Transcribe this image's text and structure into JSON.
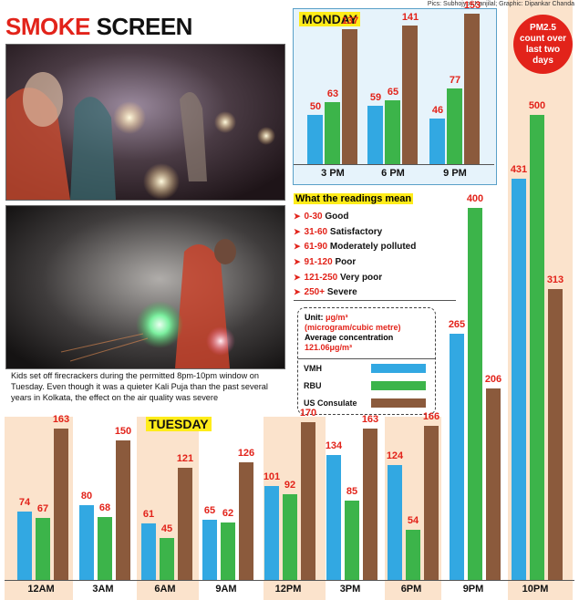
{
  "credits": "Pics: Subhojyoti Kanjilal; Graphic: Dipankar Chanda",
  "headline": {
    "part1": "SMOKE",
    "part2": "SCREEN"
  },
  "badge": {
    "line1": "PM2.5",
    "line2": "count over",
    "line3": "last two",
    "line4": "days"
  },
  "caption": "Kids set off firecrackers during the permitted 8pm-10pm window on Tuesday. Even though it was a quieter Kali Puja than the past several years in Kolkata, the effect on the air quality was severe",
  "colors": {
    "VMH": "#32a8e2",
    "RBU": "#3cb44a",
    "US Consulate": "#8b5a3c",
    "band": "#fbe3cc",
    "tag": "#ffec1a",
    "accent": "#e2231a"
  },
  "readings": {
    "title": "What the readings mean",
    "items": [
      {
        "range": "0-30",
        "label": "Good"
      },
      {
        "range": "31-60",
        "label": "Satisfactory"
      },
      {
        "range": "61-90",
        "label": "Moderately polluted"
      },
      {
        "range": "91-120",
        "label": "Poor"
      },
      {
        "range": "121-250",
        "label": "Very poor"
      },
      {
        "range": "250+",
        "label": "Severe"
      }
    ]
  },
  "legend": {
    "unit_label": "Unit:",
    "unit": "μg/m³",
    "unit_desc": "(microgram/cubic metre)",
    "avg_label": "Average concentration",
    "avg_value": "121.06μg/m³",
    "entries": [
      "VMH",
      "RBU",
      "US Consulate"
    ]
  },
  "chart_data": [
    {
      "type": "bar",
      "title": "MONDAY",
      "categories": [
        "3 PM",
        "6 PM",
        "9 PM"
      ],
      "series": [
        {
          "name": "VMH",
          "values": [
            50,
            59,
            46
          ]
        },
        {
          "name": "RBU",
          "values": [
            63,
            65,
            77
          ]
        },
        {
          "name": "US Consulate",
          "values": [
            137,
            141,
            153
          ]
        }
      ]
    },
    {
      "type": "bar",
      "title": "TUESDAY",
      "categories": [
        "12AM",
        "3AM",
        "6AM",
        "9AM",
        "12PM",
        "3PM",
        "6PM",
        "9PM",
        "10PM"
      ],
      "series": [
        {
          "name": "VMH",
          "values": [
            74,
            80,
            61,
            65,
            101,
            134,
            124,
            265,
            431
          ]
        },
        {
          "name": "RBU",
          "values": [
            67,
            68,
            45,
            62,
            92,
            85,
            54,
            400,
            500
          ]
        },
        {
          "name": "US Consulate",
          "values": [
            163,
            150,
            121,
            126,
            170,
            163,
            166,
            206,
            313
          ]
        }
      ]
    }
  ]
}
